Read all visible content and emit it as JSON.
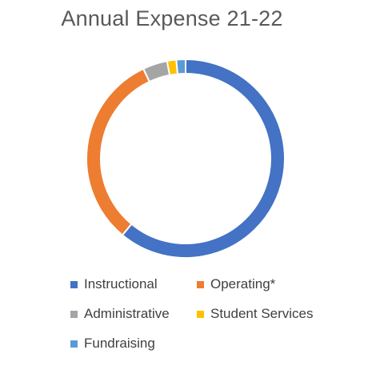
{
  "chart_data": {
    "type": "pie",
    "style": "donut",
    "title": "Annual Expense 21-22",
    "categories": [
      "Instructional",
      "Operating*",
      "Administrative",
      "Student Services",
      "Fundraising"
    ],
    "values": [
      61,
      32,
      4,
      1.5,
      1.5
    ],
    "unit": "approximate percent of total",
    "colors": [
      "#4472C4",
      "#ED7D31",
      "#A5A5A5",
      "#FFC000",
      "#5B9BD5"
    ],
    "legend_position": "bottom",
    "grid": false
  }
}
